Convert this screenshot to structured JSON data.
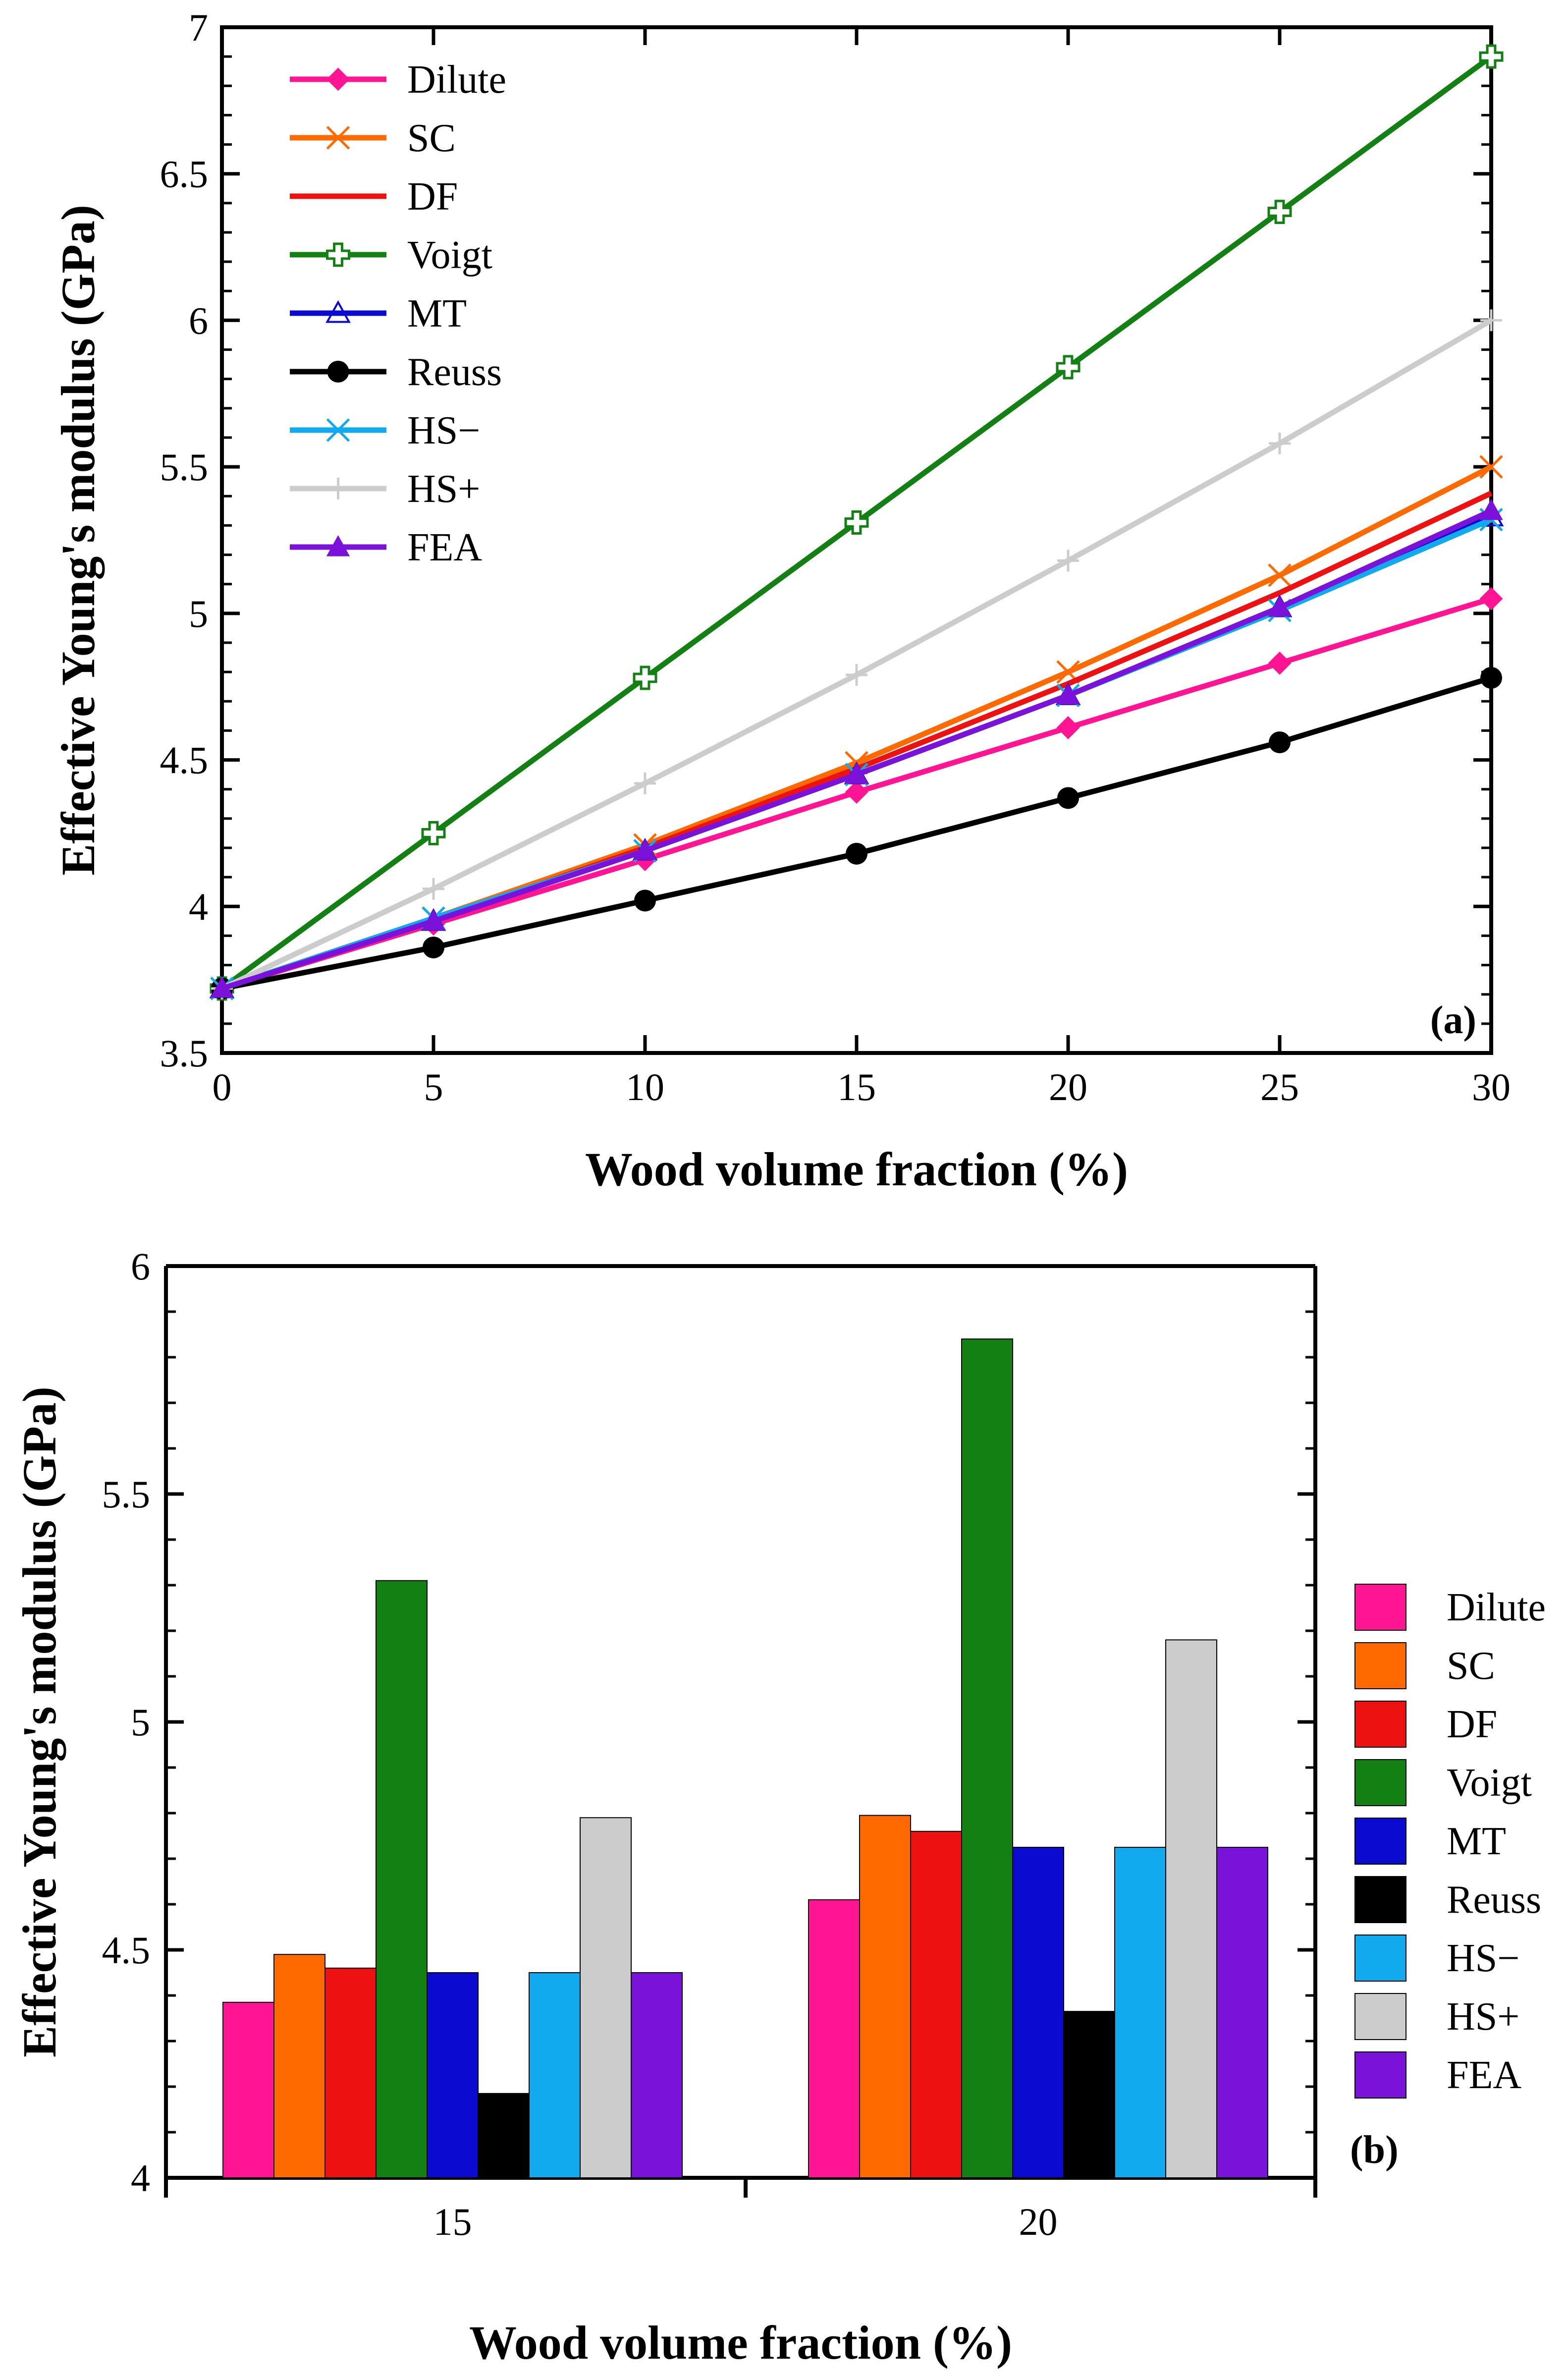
{
  "chart_data": [
    {
      "type": "line",
      "panel_label": "(a)",
      "xlabel": "Wood volume fraction (%)",
      "ylabel": "Effective Young's modulus (GPa)",
      "xlim": [
        0,
        30
      ],
      "ylim": [
        3.5,
        7
      ],
      "xticks": [
        "0",
        "5",
        "10",
        "15",
        "20",
        "25",
        "30"
      ],
      "yticks": [
        "3.5",
        "4",
        "4.5",
        "5",
        "5.5",
        "6",
        "6.5",
        "7"
      ],
      "legend_position": "top-left",
      "x": [
        0,
        5,
        10,
        15,
        20,
        25,
        30
      ],
      "series": [
        {
          "name": "Dilute",
          "color": "#ff1493",
          "marker": "diamond",
          "values": [
            3.72,
            3.94,
            4.16,
            4.39,
            4.61,
            4.83,
            5.05
          ]
        },
        {
          "name": "SC",
          "color": "#ff6a00",
          "marker": "x",
          "values": [
            3.72,
            3.96,
            4.21,
            4.49,
            4.8,
            5.13,
            5.5
          ]
        },
        {
          "name": "DF",
          "color": "#ee1111",
          "marker": "none",
          "values": [
            3.72,
            3.95,
            4.2,
            4.47,
            4.76,
            5.07,
            5.41
          ]
        },
        {
          "name": "Voigt",
          "color": "#128012",
          "marker": "plus-square",
          "values": [
            3.72,
            4.25,
            4.78,
            5.31,
            5.84,
            6.37,
            6.9
          ]
        },
        {
          "name": "MT",
          "color": "#0a0ad0",
          "marker": "triangle-open",
          "values": [
            3.72,
            3.95,
            4.19,
            4.45,
            4.72,
            5.02,
            5.33
          ]
        },
        {
          "name": "Reuss",
          "color": "#000000",
          "marker": "circle",
          "values": [
            3.72,
            3.86,
            4.02,
            4.18,
            4.37,
            4.56,
            4.78
          ]
        },
        {
          "name": "HS−",
          "color": "#11aaee",
          "marker": "x",
          "values": [
            3.72,
            3.96,
            4.19,
            4.45,
            4.72,
            5.01,
            5.32
          ]
        },
        {
          "name": "HS+",
          "color": "#cccccc",
          "marker": "plus",
          "values": [
            3.72,
            4.06,
            4.42,
            4.79,
            5.18,
            5.58,
            6.0
          ]
        },
        {
          "name": "FEA",
          "color": "#7b12d9",
          "marker": "triangle",
          "values": [
            3.72,
            3.95,
            4.19,
            4.45,
            4.72,
            5.02,
            5.35
          ]
        }
      ]
    },
    {
      "type": "bar",
      "panel_label": "(b)",
      "xlabel": "Wood volume fraction (%)",
      "ylabel": "Effective Young's modulus (GPa)",
      "ylim": [
        4,
        6
      ],
      "yticks": [
        "4",
        "4.5",
        "5",
        "5.5",
        "6"
      ],
      "categories": [
        "15",
        "20"
      ],
      "legend_position": "right",
      "series": [
        {
          "name": "Dilute",
          "color": "#ff1493",
          "values": [
            4.385,
            4.61
          ]
        },
        {
          "name": "SC",
          "color": "#ff6a00",
          "values": [
            4.49,
            4.795
          ]
        },
        {
          "name": "DF",
          "color": "#ee1111",
          "values": [
            4.46,
            4.76
          ]
        },
        {
          "name": "Voigt",
          "color": "#128012",
          "values": [
            5.31,
            5.84
          ]
        },
        {
          "name": "MT",
          "color": "#0a0ad0",
          "values": [
            4.45,
            4.725
          ]
        },
        {
          "name": "Reuss",
          "color": "#000000",
          "values": [
            4.185,
            4.365
          ]
        },
        {
          "name": "HS−",
          "color": "#11aaee",
          "values": [
            4.45,
            4.725
          ]
        },
        {
          "name": "HS+",
          "color": "#cccccc",
          "values": [
            4.79,
            5.18
          ]
        },
        {
          "name": "FEA",
          "color": "#7b12d9",
          "values": [
            4.45,
            4.725
          ]
        }
      ]
    }
  ]
}
